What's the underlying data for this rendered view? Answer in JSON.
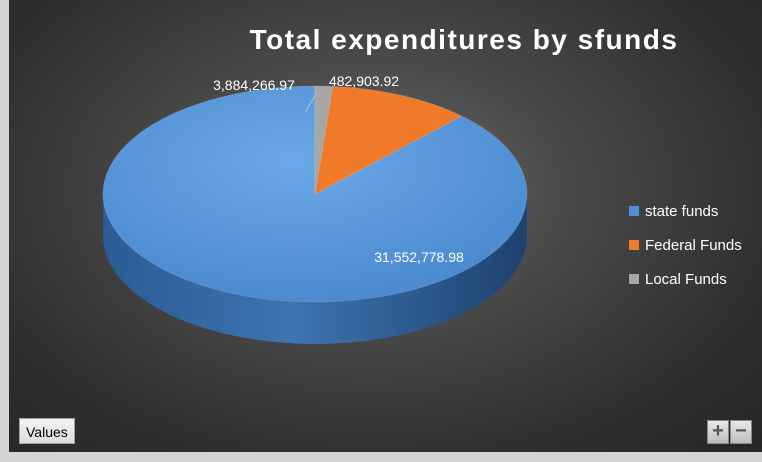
{
  "chart_data": {
    "type": "pie",
    "title": "Total expenditures  by sfunds",
    "categories": [
      "state funds",
      "Federal Funds",
      "Local Funds"
    ],
    "values": [
      31552778.98,
      3884266.97,
      482903.92
    ],
    "data_labels": [
      "31,552,778.98",
      "3,884,266.97",
      "482,903.92"
    ],
    "colors": [
      "#4f8fd6",
      "#f07a2a",
      "#a6a6a6"
    ],
    "legend_position": "right",
    "style": "3d"
  },
  "controls": {
    "values_button_label": "Values",
    "zoom_in_icon": "+",
    "zoom_out_icon": "−"
  }
}
